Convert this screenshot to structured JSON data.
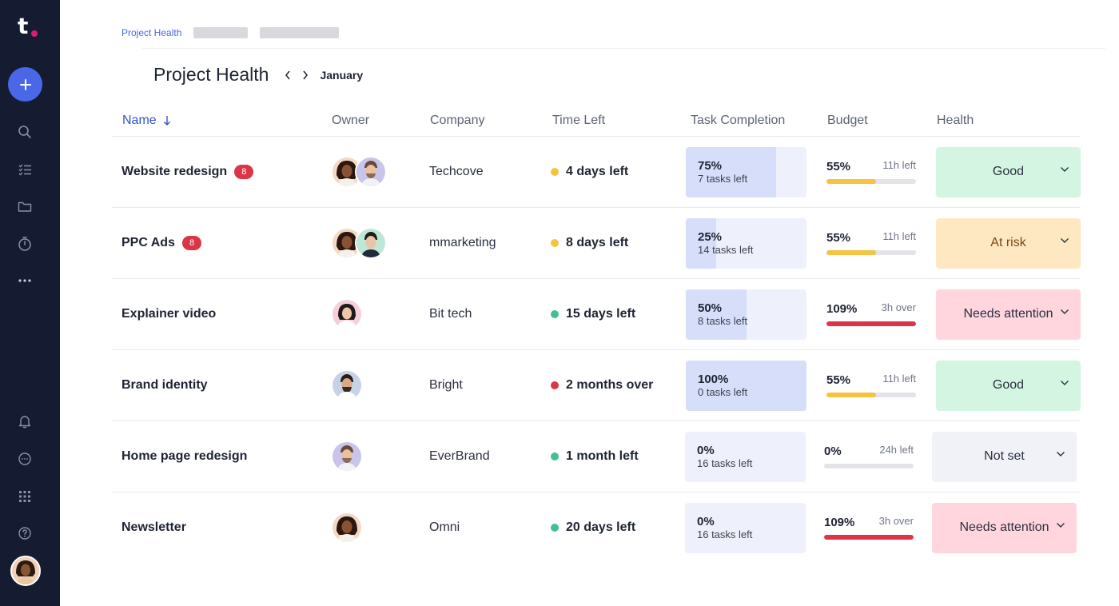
{
  "sidebar": {
    "logo": "t",
    "icons": [
      "search-icon",
      "checklist-icon",
      "folder-icon",
      "timer-icon",
      "more-icon",
      "bell-icon",
      "chat-icon",
      "apps-grid-icon",
      "help-icon"
    ]
  },
  "breadcrumb": {
    "current": "Project Health"
  },
  "header": {
    "title": "Project Health",
    "month": "January"
  },
  "columns": {
    "name": "Name",
    "owner": "Owner",
    "company": "Company",
    "time_left": "Time Left",
    "task_completion": "Task Completion",
    "budget": "Budget",
    "health": "Health"
  },
  "colors": {
    "accent": "#4a67e8",
    "sidebar": "#151b30",
    "dot_yellow": "#f5c242",
    "dot_green": "#3ec28f",
    "dot_red": "#dc3545",
    "health_good": "#d3f5e1",
    "health_risk": "#fde8c2",
    "health_attention": "#ffd6de",
    "health_notset": "#f0f2f7"
  },
  "rows": [
    {
      "name": "Website redesign",
      "badge": "8",
      "owners": [
        "avatar-woman-1",
        "avatar-man-1"
      ],
      "company": "Techcove",
      "time_left": "4 days left",
      "time_status": "yellow",
      "task_pct": "75%",
      "task_fraction": 0.75,
      "task_sub": "7 tasks left",
      "budget_pct": "55%",
      "budget_fraction": 0.55,
      "budget_meta": "11h left",
      "budget_status": "yellow",
      "health": "Good",
      "health_status": "good"
    },
    {
      "name": "PPC Ads",
      "badge": "8",
      "owners": [
        "avatar-woman-1",
        "avatar-man-2"
      ],
      "company": "mmarketing",
      "time_left": "8 days left",
      "time_status": "yellow",
      "task_pct": "25%",
      "task_fraction": 0.25,
      "task_sub": "14 tasks left",
      "budget_pct": "55%",
      "budget_fraction": 0.55,
      "budget_meta": "11h left",
      "budget_status": "yellow",
      "health": "At risk",
      "health_status": "risk"
    },
    {
      "name": "Explainer video",
      "badge": "",
      "owners": [
        "avatar-woman-2"
      ],
      "company": "Bit tech",
      "time_left": "15 days left",
      "time_status": "green",
      "task_pct": "50%",
      "task_fraction": 0.5,
      "task_sub": "8 tasks left",
      "budget_pct": "109%",
      "budget_fraction": 1.0,
      "budget_meta": "3h over",
      "budget_status": "red",
      "health": "Needs attention",
      "health_status": "attention"
    },
    {
      "name": "Brand identity",
      "badge": "",
      "owners": [
        "avatar-man-3"
      ],
      "company": "Bright",
      "time_left": "2 months over",
      "time_status": "red",
      "task_pct": "100%",
      "task_fraction": 1.0,
      "task_sub": "0 tasks left",
      "budget_pct": "55%",
      "budget_fraction": 0.55,
      "budget_meta": "11h left",
      "budget_status": "yellow",
      "health": "Good",
      "health_status": "good"
    },
    {
      "name": "Home page redesign",
      "badge": "",
      "owners": [
        "avatar-man-1"
      ],
      "company": "EverBrand",
      "time_left": "1 month left",
      "time_status": "green",
      "task_pct": "0%",
      "task_fraction": 0,
      "task_sub": "16 tasks left",
      "budget_pct": "0%",
      "budget_fraction": 0,
      "budget_meta": "24h left",
      "budget_status": "grey",
      "health": "Not set",
      "health_status": "notset"
    },
    {
      "name": "Newsletter",
      "badge": "",
      "owners": [
        "avatar-woman-1"
      ],
      "company": "Omni",
      "time_left": "20 days left",
      "time_status": "green",
      "task_pct": "0%",
      "task_fraction": 0,
      "task_sub": "16 tasks left",
      "budget_pct": "109%",
      "budget_fraction": 1.0,
      "budget_meta": "3h over",
      "budget_status": "red",
      "health": "Needs attention",
      "health_status": "attention"
    }
  ]
}
